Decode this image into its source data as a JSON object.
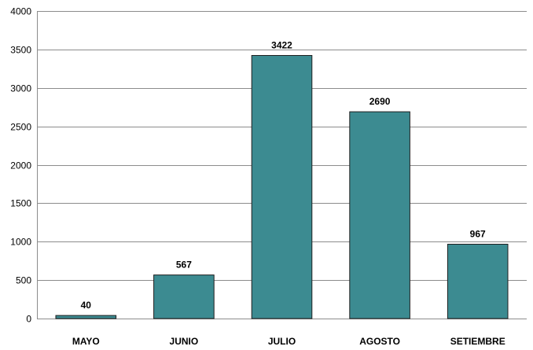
{
  "chart_data": {
    "type": "bar",
    "categories": [
      "MAYO",
      "JUNIO",
      "JULIO",
      "AGOSTO",
      "SETIEMBRE"
    ],
    "values": [
      40,
      567,
      3422,
      2690,
      967
    ],
    "title": "",
    "xlabel": "",
    "ylabel": "",
    "ylim": [
      0,
      4000
    ],
    "yticks": [
      0,
      500,
      1000,
      1500,
      2000,
      2500,
      3000,
      3500,
      4000
    ],
    "grid": true,
    "legend": "none",
    "data_labels": true,
    "colors": {
      "bar_fill": "#3c8b91",
      "bar_stroke": "#1f1f1f",
      "grid": "#8c8c8c",
      "axis": "#8c8c8c"
    }
  }
}
